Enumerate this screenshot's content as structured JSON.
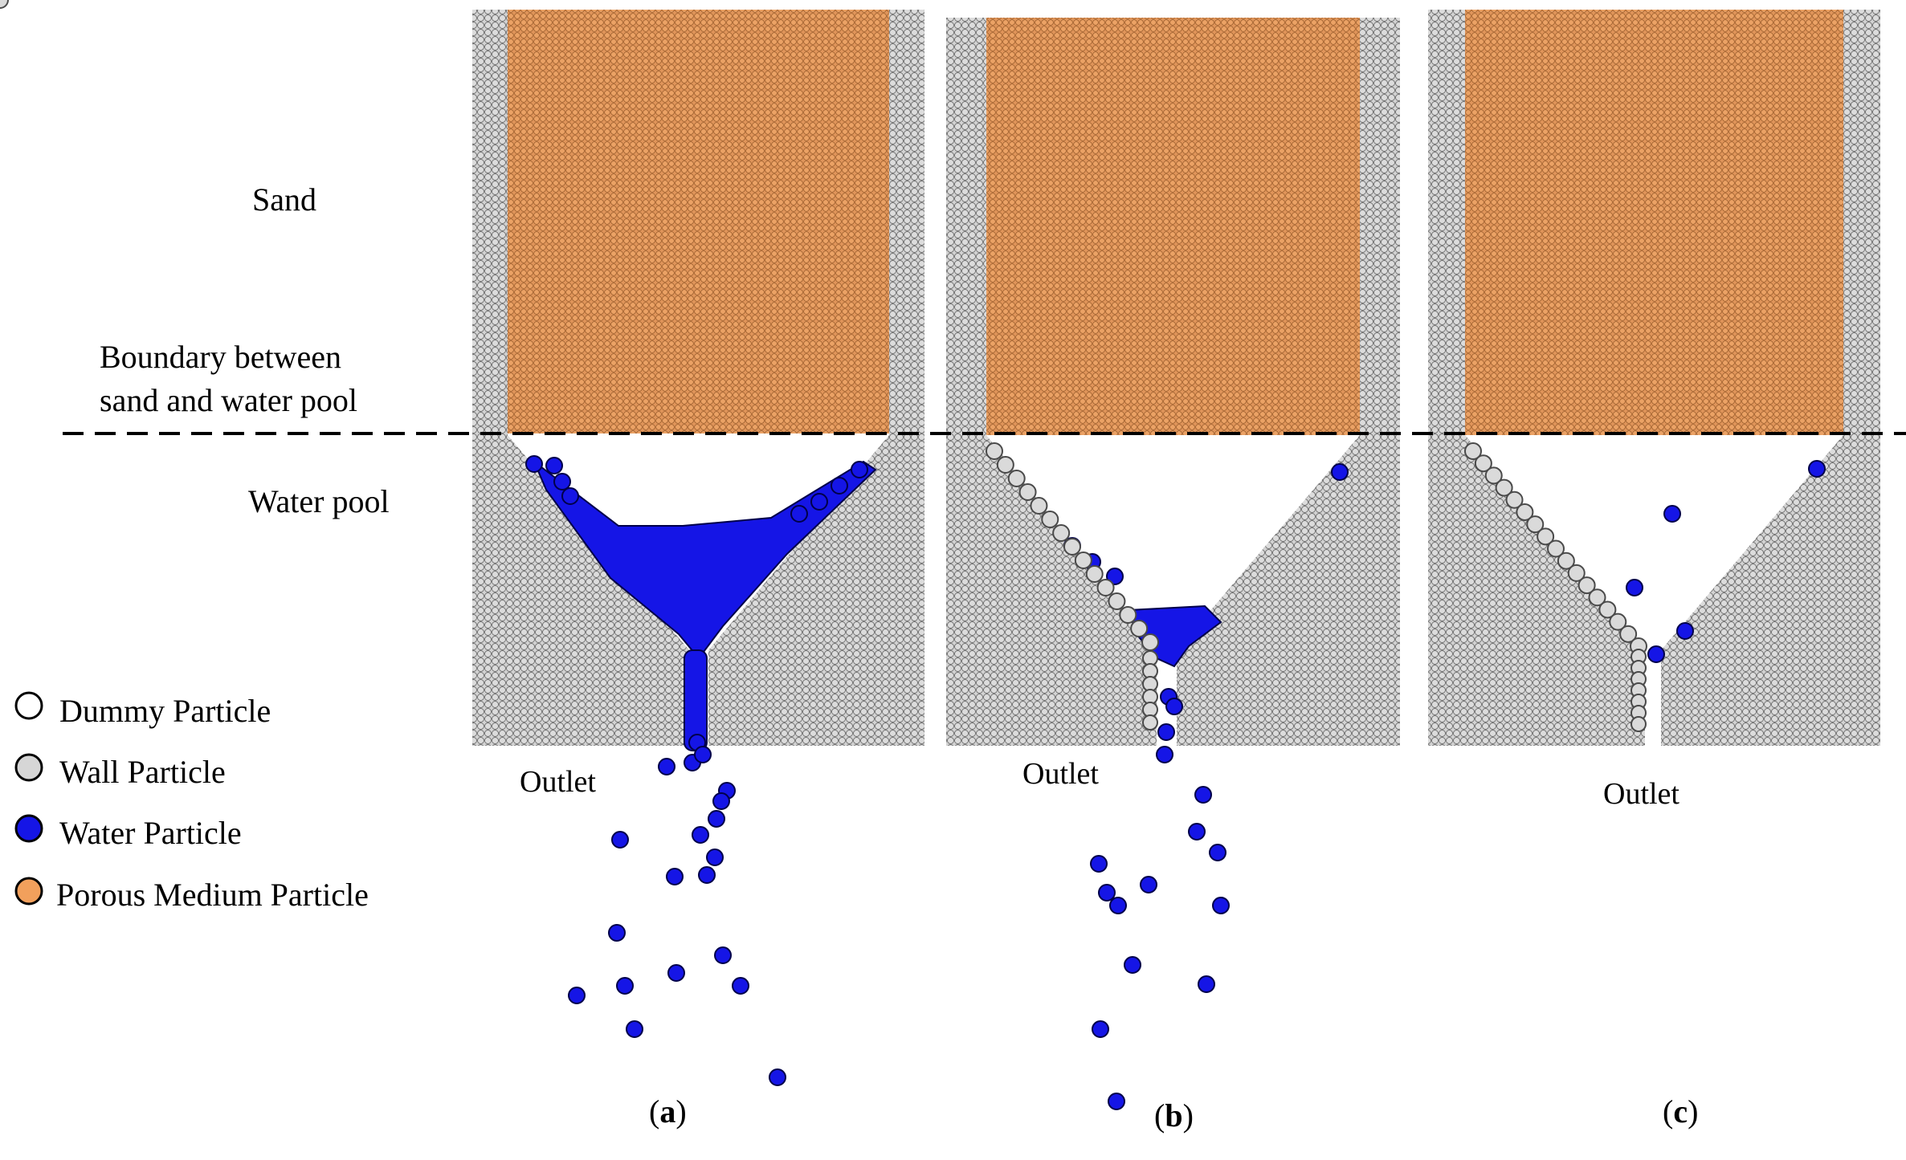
{
  "labels": {
    "sand": "Sand",
    "boundary_line1": "Boundary between",
    "boundary_line2": "sand and water pool",
    "water_pool": "Water pool",
    "outlet_a": "Outlet",
    "outlet_b": "Outlet",
    "outlet_c": "Outlet"
  },
  "legend": [
    {
      "name": "dummy",
      "label": "Dummy Particle",
      "fill": "#ffffff"
    },
    {
      "name": "wall",
      "label": "Wall Particle",
      "fill": "#d6d6d6"
    },
    {
      "name": "water",
      "label": "Water Particle",
      "fill": "#1515e6"
    },
    {
      "name": "porous",
      "label": "Porous Medium Particle",
      "fill": "#f2a05c"
    }
  ],
  "panels": [
    {
      "id": "a",
      "open": "(",
      "letter": "a",
      "close": ")"
    },
    {
      "id": "b",
      "open": "(",
      "letter": "b",
      "close": ")"
    },
    {
      "id": "c",
      "open": "(",
      "letter": "c",
      "close": ")"
    }
  ],
  "colors": {
    "sand": "#e0955a",
    "wall_fill": "#d6d6d6",
    "wall_stroke": "#6e6e6e",
    "water": "#1515e6",
    "water_stroke": "#00004a",
    "dashed_line": "#000000"
  }
}
